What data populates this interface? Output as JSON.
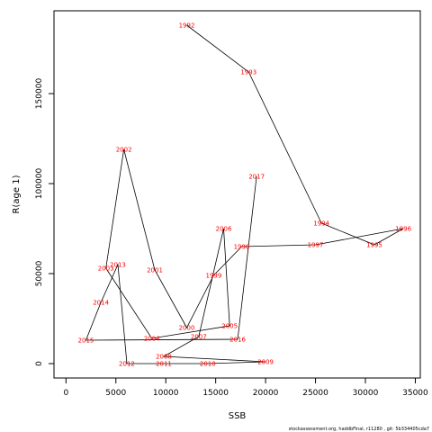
{
  "chart_data": {
    "type": "line",
    "xlabel": "SSB",
    "ylabel": "R(age 1)",
    "xlim": [
      -1200,
      35500
    ],
    "ylim": [
      -8000,
      196000
    ],
    "x_ticks": [
      0,
      5000,
      10000,
      15000,
      20000,
      25000,
      30000,
      35000
    ],
    "y_ticks": [
      0,
      50000,
      100000,
      150000
    ],
    "line_color": "#000000",
    "label_color": "#ff0000",
    "footer": "stockassessment.org, haddbFinal, r11280 , git: 5b334405cda7",
    "points": [
      {
        "label": "1992",
        "x": 12100,
        "y": 188000
      },
      {
        "label": "1993",
        "x": 18300,
        "y": 162000
      },
      {
        "label": "1994",
        "x": 25600,
        "y": 78000
      },
      {
        "label": "1995",
        "x": 30900,
        "y": 66000
      },
      {
        "label": "1996",
        "x": 33800,
        "y": 75000
      },
      {
        "label": "1997",
        "x": 25000,
        "y": 66000
      },
      {
        "label": "1998",
        "x": 17600,
        "y": 65000
      },
      {
        "label": "1999",
        "x": 14800,
        "y": 49000
      },
      {
        "label": "2000",
        "x": 12100,
        "y": 20000
      },
      {
        "label": "2001",
        "x": 8900,
        "y": 52000
      },
      {
        "label": "2002",
        "x": 5800,
        "y": 119000
      },
      {
        "label": "2003",
        "x": 4000,
        "y": 53000
      },
      {
        "label": "2004",
        "x": 8600,
        "y": 14000
      },
      {
        "label": "2005",
        "x": 16400,
        "y": 21000
      },
      {
        "label": "2006",
        "x": 15800,
        "y": 75000
      },
      {
        "label": "2007",
        "x": 13300,
        "y": 15000
      },
      {
        "label": "2008",
        "x": 9800,
        "y": 4000
      },
      {
        "label": "2009",
        "x": 20000,
        "y": 1000
      },
      {
        "label": "2010",
        "x": 14200,
        "y": 0
      },
      {
        "label": "2011",
        "x": 9800,
        "y": 0
      },
      {
        "label": "2012",
        "x": 6100,
        "y": 0
      },
      {
        "label": "2013",
        "x": 5200,
        "y": 55000
      },
      {
        "label": "2014",
        "x": 3500,
        "y": 34000
      },
      {
        "label": "2015",
        "x": 2000,
        "y": 13000
      },
      {
        "label": "2016",
        "x": 17200,
        "y": 13500
      },
      {
        "label": "2017",
        "x": 19100,
        "y": 104000
      }
    ]
  }
}
